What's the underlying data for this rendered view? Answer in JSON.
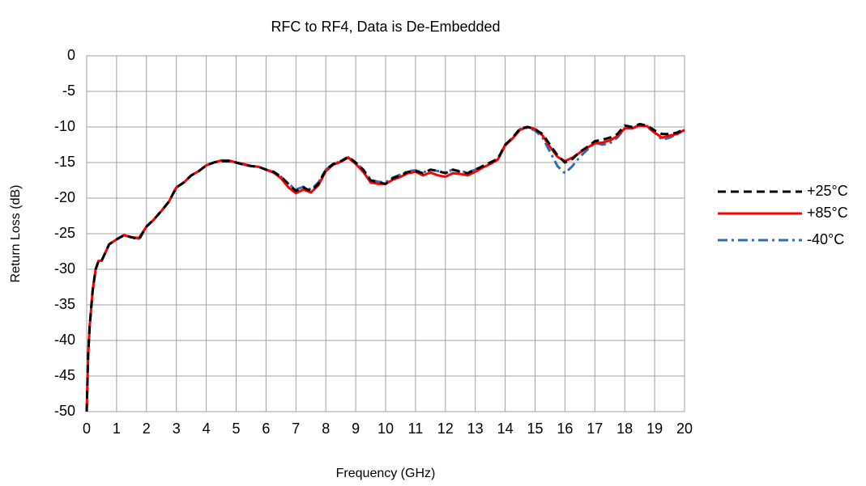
{
  "chart_data": {
    "type": "line",
    "title": "RFC to RF4, Data is De-Embedded",
    "x_label": "Frequency (GHz)",
    "y_label": "Return Loss (dB)",
    "x": [
      0,
      0.05,
      0.1,
      0.2,
      0.3,
      0.4,
      0.5,
      0.75,
      1,
      1.25,
      1.5,
      1.75,
      2,
      2.25,
      2.5,
      2.75,
      3,
      3.25,
      3.5,
      3.75,
      4,
      4.25,
      4.5,
      4.75,
      5,
      5.25,
      5.5,
      5.75,
      6,
      6.25,
      6.5,
      6.75,
      7,
      7.25,
      7.5,
      7.75,
      8,
      8.25,
      8.5,
      8.75,
      9,
      9.25,
      9.5,
      9.75,
      10,
      10.25,
      10.5,
      10.75,
      11,
      11.25,
      11.5,
      11.75,
      12,
      12.25,
      12.5,
      12.75,
      13,
      13.25,
      13.5,
      13.75,
      14,
      14.25,
      14.5,
      14.75,
      15,
      15.25,
      15.5,
      15.75,
      16,
      16.25,
      16.5,
      16.75,
      17,
      17.25,
      17.5,
      17.75,
      18,
      18.25,
      18.5,
      18.75,
      19,
      19.25,
      19.5,
      19.75,
      20
    ],
    "series": [
      {
        "name": "+25°C",
        "color": "#000000",
        "dash": "dashed",
        "values": [
          -50,
          -42,
          -38,
          -33,
          -30,
          -28.8,
          -28.8,
          -26.5,
          -25.8,
          -25.2,
          -25.5,
          -25.8,
          -24,
          -23,
          -21.8,
          -20.5,
          -18.5,
          -17.8,
          -16.8,
          -16.2,
          -15.4,
          -15,
          -14.8,
          -14.8,
          -15,
          -15.3,
          -15.5,
          -15.6,
          -16,
          -16.3,
          -17,
          -18,
          -19,
          -18.5,
          -19,
          -18,
          -16,
          -15.2,
          -14.8,
          -14.2,
          -15,
          -16,
          -17.5,
          -17.8,
          -18,
          -17.2,
          -16.8,
          -16.3,
          -16.2,
          -16.5,
          -16,
          -16.2,
          -16.5,
          -16,
          -16.3,
          -16.5,
          -16,
          -15.5,
          -15,
          -14.5,
          -12.5,
          -11.5,
          -10.2,
          -10,
          -10.3,
          -11,
          -12.5,
          -14,
          -15,
          -14.5,
          -13.5,
          -12.8,
          -12,
          -11.8,
          -11.5,
          -11,
          -9.8,
          -10,
          -9.6,
          -9.8,
          -10.5,
          -11,
          -11,
          -10.8,
          -10.3
        ]
      },
      {
        "name": "+85°C",
        "color": "#ff0000",
        "dash": "solid",
        "values": [
          -50,
          -42,
          -38,
          -33,
          -30,
          -28.8,
          -28.8,
          -26.5,
          -25.8,
          -25.2,
          -25.5,
          -25.6,
          -24,
          -23,
          -21.8,
          -20.5,
          -18.5,
          -17.8,
          -16.8,
          -16.2,
          -15.4,
          -15,
          -14.7,
          -14.7,
          -15,
          -15.2,
          -15.5,
          -15.6,
          -16,
          -16.4,
          -17.2,
          -18.5,
          -19.3,
          -18.8,
          -19.2,
          -18.2,
          -16.2,
          -15.3,
          -14.9,
          -14.3,
          -15.2,
          -16.3,
          -17.8,
          -18,
          -18,
          -17.4,
          -17,
          -16.5,
          -16.3,
          -16.8,
          -16.4,
          -16.8,
          -17,
          -16.5,
          -16.6,
          -16.8,
          -16.3,
          -15.7,
          -15.2,
          -14.6,
          -12.6,
          -11.6,
          -10.4,
          -10,
          -10.3,
          -11.2,
          -12.8,
          -14.2,
          -14.8,
          -14.3,
          -13.6,
          -12.9,
          -12.3,
          -12.2,
          -11.9,
          -11.3,
          -10.2,
          -10.2,
          -9.8,
          -9.9,
          -10.8,
          -11.5,
          -11.2,
          -11,
          -10.4
        ]
      },
      {
        "name": "-40°C",
        "color": "#2e6db4",
        "dash": "dashdot",
        "values": [
          -50,
          -42,
          -38,
          -33,
          -30,
          -28.8,
          -28.8,
          -26.5,
          -25.8,
          -25.2,
          -25.5,
          -25.7,
          -24,
          -23,
          -21.8,
          -20.5,
          -18.5,
          -17.8,
          -16.8,
          -16.2,
          -15.4,
          -15,
          -14.8,
          -14.8,
          -15,
          -15.3,
          -15.5,
          -15.6,
          -16,
          -16.3,
          -17,
          -18,
          -18.8,
          -18.4,
          -18.8,
          -17.8,
          -16,
          -15.2,
          -14.8,
          -14.3,
          -15,
          -16,
          -17.4,
          -17.7,
          -17.8,
          -17.1,
          -16.7,
          -16.2,
          -16.1,
          -16.4,
          -16,
          -16.2,
          -16.4,
          -16,
          -16.2,
          -16.4,
          -16,
          -15.5,
          -15,
          -14.5,
          -12.5,
          -11.5,
          -10.3,
          -10.1,
          -10.5,
          -11.5,
          -13.5,
          -15.5,
          -16.5,
          -15.5,
          -14.2,
          -13.2,
          -12.2,
          -12.5,
          -12.3,
          -11.5,
          -10.2,
          -10.2,
          -9.7,
          -10,
          -10.8,
          -11.8,
          -11.5,
          -11,
          -10.5
        ]
      }
    ],
    "xlim": [
      0,
      20
    ],
    "ylim": [
      -50,
      0
    ],
    "xticks": [
      0,
      1,
      2,
      3,
      4,
      5,
      6,
      7,
      8,
      9,
      10,
      11,
      12,
      13,
      14,
      15,
      16,
      17,
      18,
      19,
      20
    ],
    "yticks": [
      0,
      -5,
      -10,
      -15,
      -20,
      -25,
      -30,
      -35,
      -40,
      -45,
      -50
    ],
    "grid": true,
    "legend": "right"
  }
}
